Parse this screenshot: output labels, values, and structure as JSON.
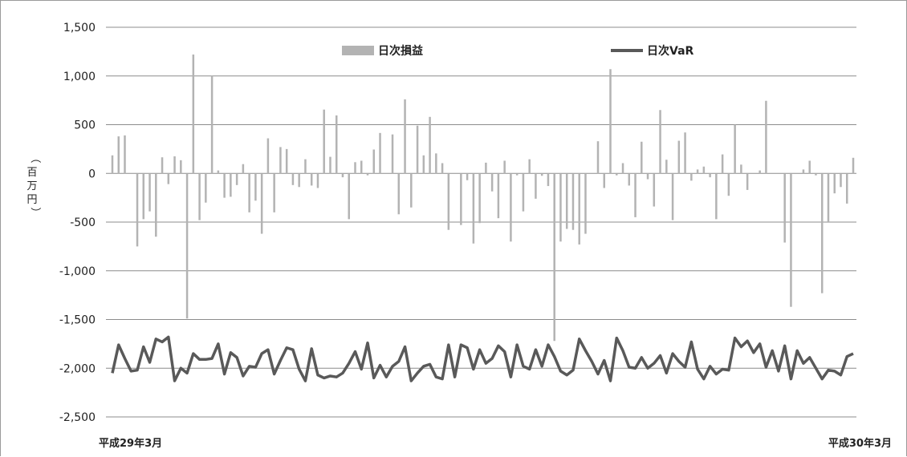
{
  "chart_data": {
    "type": "bar+line",
    "ylabel": "（百万円）",
    "ylim": [
      -2500,
      1500
    ],
    "yticks": [
      1500,
      1000,
      500,
      0,
      -500,
      -1000,
      -1500,
      -2000,
      -2500
    ],
    "ytick_labels": [
      "1,500",
      "1,000",
      "500",
      "0",
      "-500",
      "-1,000",
      "-1,500",
      "-2,000",
      "-2,500"
    ],
    "xtick_labels": [
      "平成29年3月",
      "平成30年3月"
    ],
    "grid": "horizontal",
    "legend_position": "top",
    "colors": {
      "bars": "#b3b3b3",
      "line": "#595959",
      "grid": "#8c8c8c"
    },
    "series": [
      {
        "name": "日次損益",
        "type": "bar",
        "values": [
          185,
          380,
          390,
          0,
          -750,
          -470,
          -390,
          -650,
          165,
          -110,
          175,
          135,
          -1490,
          1220,
          -480,
          -300,
          1000,
          30,
          -250,
          -240,
          -120,
          95,
          -400,
          -280,
          -620,
          360,
          -400,
          270,
          250,
          -120,
          -140,
          145,
          -125,
          -150,
          655,
          170,
          595,
          -40,
          -470,
          115,
          130,
          -20,
          245,
          415,
          0,
          400,
          -420,
          760,
          -350,
          490,
          185,
          580,
          205,
          105,
          -580,
          0,
          -530,
          -70,
          -720,
          -510,
          110,
          -185,
          -460,
          130,
          -700,
          -20,
          -390,
          145,
          -260,
          -25,
          -130,
          -1720,
          -700,
          -570,
          -580,
          -730,
          -620,
          0,
          330,
          -150,
          1070,
          -20,
          105,
          -125,
          -450,
          325,
          -60,
          -340,
          650,
          140,
          -480,
          335,
          420,
          -75,
          40,
          70,
          -40,
          -470,
          195,
          -230,
          500,
          90,
          -170,
          0,
          30,
          745,
          0,
          0,
          -710,
          -1370,
          0,
          40,
          130,
          -20,
          -1230,
          -500,
          -205,
          -140,
          -310,
          160
        ],
        "start_x": 139,
        "end_x": 1062
      },
      {
        "name": "日次VaR",
        "type": "line",
        "values": [
          -2050,
          -1760,
          -1900,
          -2030,
          -2020,
          -1780,
          -1940,
          -1700,
          -1730,
          -1680,
          -2130,
          -2000,
          -2050,
          -1850,
          -1910,
          -1910,
          -1900,
          -1750,
          -2060,
          -1840,
          -1890,
          -2080,
          -1980,
          -1990,
          -1850,
          -1810,
          -2060,
          -1920,
          -1790,
          -1810,
          -2010,
          -2130,
          -1800,
          -2070,
          -2100,
          -2080,
          -2090,
          -2050,
          -1950,
          -1830,
          -2010,
          -1740,
          -2100,
          -1970,
          -2090,
          -1980,
          -1930,
          -1780,
          -2130,
          -2050,
          -1980,
          -1960,
          -2090,
          -2110,
          -1760,
          -2090,
          -1760,
          -1790,
          -2010,
          -1810,
          -1950,
          -1900,
          -1770,
          -1830,
          -2090,
          -1760,
          -1980,
          -2010,
          -1810,
          -1980,
          -1760,
          -1880,
          -2030,
          -2070,
          -2020,
          -1700,
          -1820,
          -1930,
          -2060,
          -1920,
          -2130,
          -1690,
          -1820,
          -1990,
          -2000,
          -1890,
          -2000,
          -1950,
          -1870,
          -2050,
          -1850,
          -1930,
          -1990,
          -1730,
          -2010,
          -2110,
          -1980,
          -2060,
          -2010,
          -2020,
          -1690,
          -1780,
          -1720,
          -1840,
          -1750,
          -1990,
          -1820,
          -2030,
          -1770,
          -2110,
          -1820,
          -1950,
          -1890,
          -2000,
          -2110,
          -2020,
          -2030,
          -2070,
          -1880,
          -1850
        ],
        "start_x": 139,
        "end_x": 1062
      }
    ]
  }
}
